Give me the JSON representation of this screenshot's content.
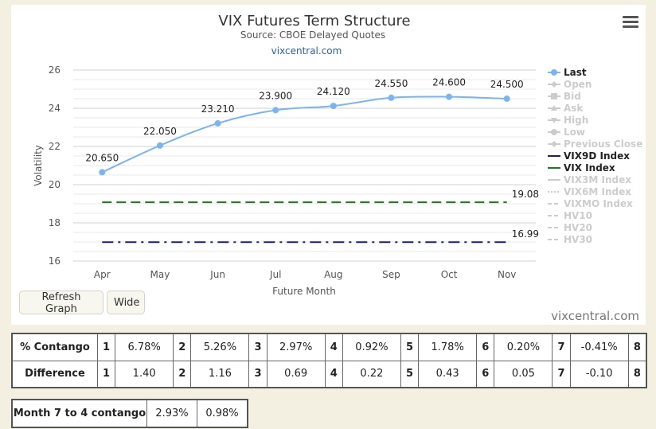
{
  "chart_data": {
    "type": "line",
    "title": "VIX Futures Term Structure",
    "subtitle": "Source: CBOE Delayed Quotes",
    "link": "vixcentral.com",
    "xlabel": "Future Month",
    "ylabel": "Volatility",
    "categories": [
      "Apr",
      "May",
      "Jun",
      "Jul",
      "Aug",
      "Sep",
      "Oct",
      "Nov"
    ],
    "ylim": [
      16,
      26
    ],
    "yticks": [
      16,
      18,
      20,
      22,
      24,
      26
    ],
    "grid": true,
    "legend_position": "right",
    "series": [
      {
        "name": "Last",
        "values": [
          20.65,
          22.05,
          23.21,
          23.9,
          24.12,
          24.55,
          24.6,
          24.5
        ],
        "labels": [
          "20.650",
          "22.050",
          "23.210",
          "23.900",
          "24.120",
          "24.550",
          "24.600",
          "24.500"
        ],
        "color": "#7cb5ec",
        "visible": true
      },
      {
        "name": "VIX9D Index",
        "value": 16.99,
        "label": "16.99",
        "color": "#1f1f6f",
        "style": "dash-dot",
        "visible": true
      },
      {
        "name": "VIX Index",
        "value": 19.08,
        "label": "19.08",
        "color": "#1e7a1e",
        "style": "dash",
        "visible": true
      }
    ],
    "legend": [
      {
        "name": "Last",
        "active": true,
        "symbol": "circle",
        "color": "#7cb5ec"
      },
      {
        "name": "Open",
        "active": false,
        "symbol": "diamond"
      },
      {
        "name": "Bid",
        "active": false,
        "symbol": "square"
      },
      {
        "name": "Ask",
        "active": false,
        "symbol": "triangle"
      },
      {
        "name": "High",
        "active": false,
        "symbol": "triangle-down"
      },
      {
        "name": "Low",
        "active": false,
        "symbol": "circle"
      },
      {
        "name": "Previous Close",
        "active": false,
        "symbol": "diamond"
      },
      {
        "name": "VIX9D Index",
        "active": true,
        "symbol": "line",
        "color": "#1f1f6f"
      },
      {
        "name": "VIX Index",
        "active": true,
        "symbol": "line",
        "color": "#1e7a1e"
      },
      {
        "name": "VIX3M Index",
        "active": false,
        "symbol": "line"
      },
      {
        "name": "VIX6M Index",
        "active": false,
        "symbol": "dotted"
      },
      {
        "name": "VIXMO Index",
        "active": false,
        "symbol": "dashed"
      },
      {
        "name": "HV10",
        "active": false,
        "symbol": "dashed"
      },
      {
        "name": "HV20",
        "active": false,
        "symbol": "dashed"
      },
      {
        "name": "HV30",
        "active": false,
        "symbol": "dashed"
      }
    ]
  },
  "buttons": {
    "refresh": "Refresh Graph",
    "wide": "Wide"
  },
  "watermark": "vixcentral.com",
  "contango_table": {
    "rows": [
      {
        "label": "% Contango",
        "cells": [
          [
            "1",
            "6.78%"
          ],
          [
            "2",
            "5.26%"
          ],
          [
            "3",
            "2.97%"
          ],
          [
            "4",
            "0.92%"
          ],
          [
            "5",
            "1.78%"
          ],
          [
            "6",
            "0.20%"
          ],
          [
            "7",
            "-0.41%"
          ]
        ],
        "last_index": "8"
      },
      {
        "label": "Difference",
        "cells": [
          [
            "1",
            "1.40"
          ],
          [
            "2",
            "1.16"
          ],
          [
            "3",
            "0.69"
          ],
          [
            "4",
            "0.22"
          ],
          [
            "5",
            "0.43"
          ],
          [
            "6",
            "0.05"
          ],
          [
            "7",
            "-0.10"
          ]
        ],
        "last_index": "8"
      }
    ]
  },
  "month_table": {
    "label": "Month 7 to 4 contango",
    "values": [
      "2.93%",
      "0.98%"
    ]
  }
}
